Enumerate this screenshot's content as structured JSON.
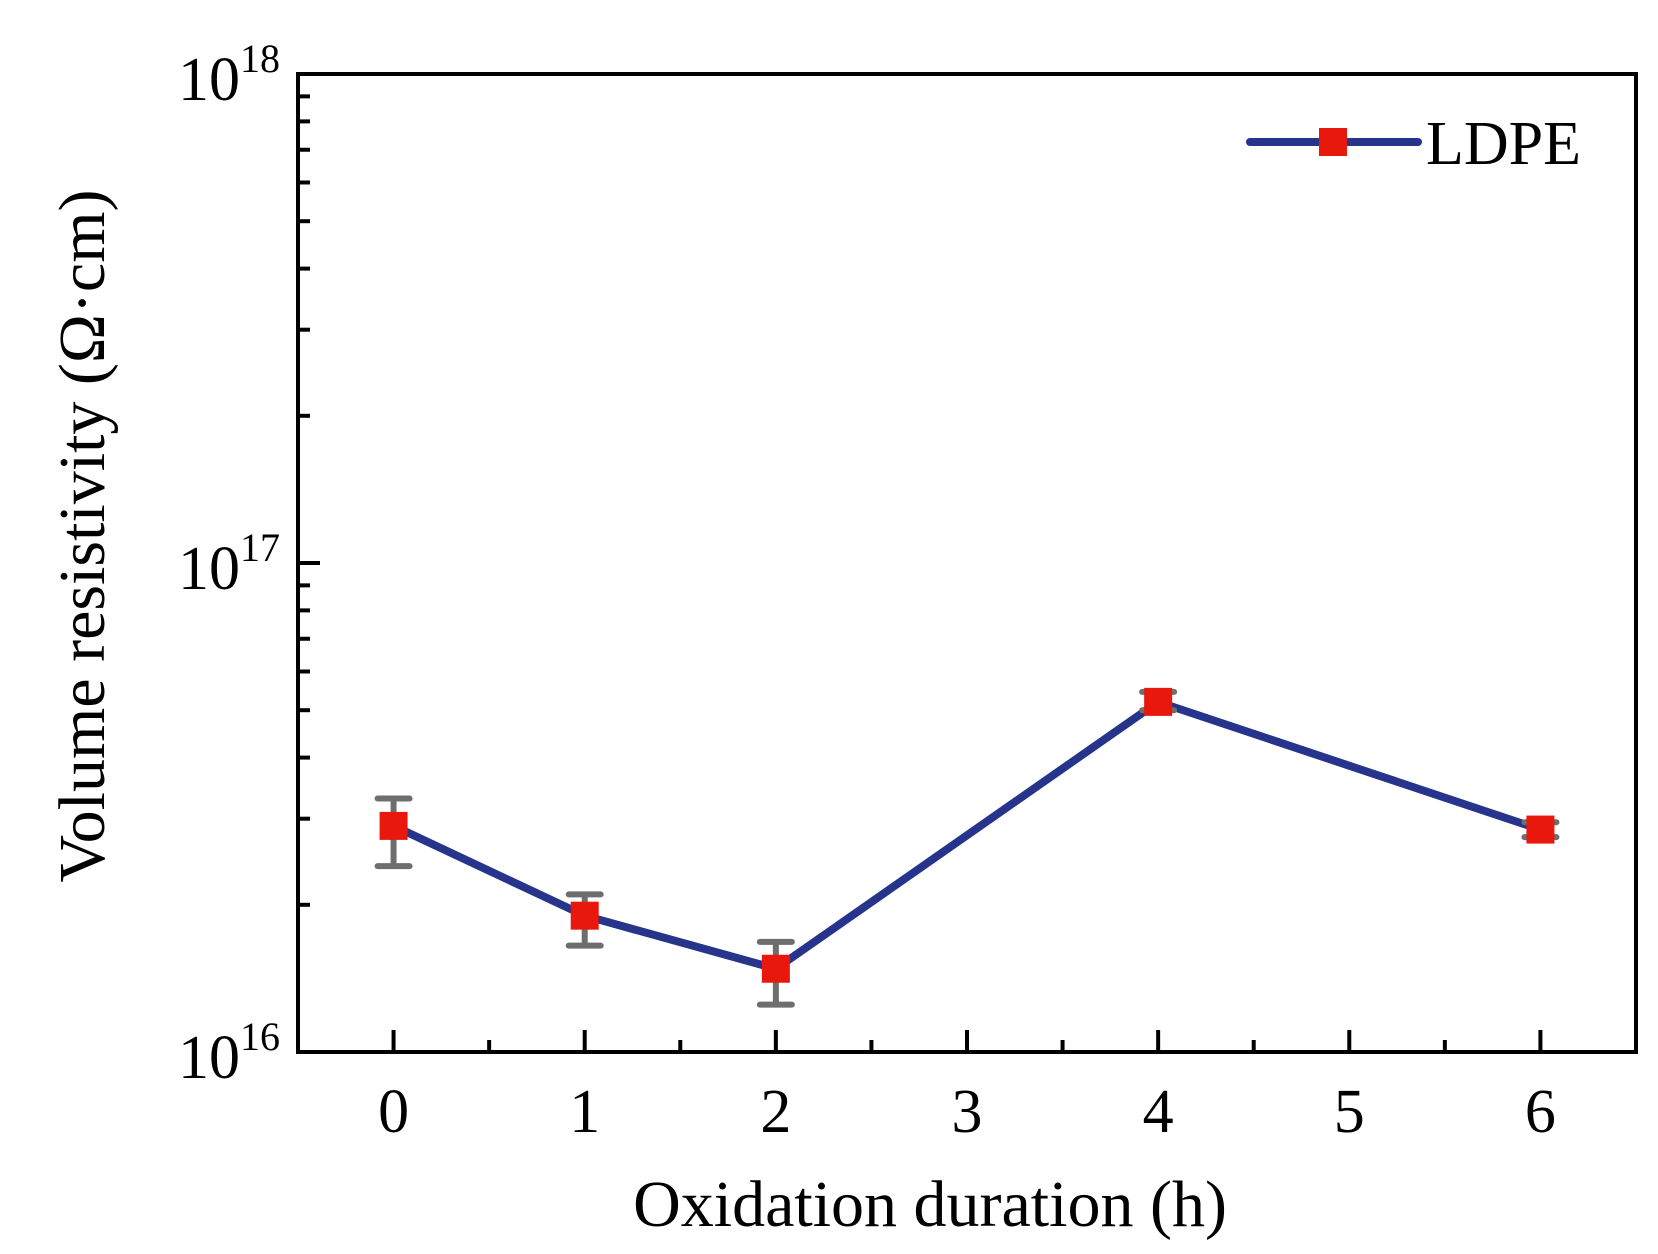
{
  "chart_data": {
    "type": "line",
    "title": "",
    "xlabel": "Oxidation duration (h)",
    "ylabel": "Volume resistivity (Ω·cm)",
    "x_ticks": [
      "0",
      "1",
      "2",
      "3",
      "4",
      "5",
      "6"
    ],
    "xlim": [
      -0.5,
      6.5
    ],
    "y_scale": "log",
    "ylim": [
      1e+16,
      1e+18
    ],
    "y_ticks": [
      {
        "value": 1e+16,
        "base": "10",
        "exp": "16"
      },
      {
        "value": 1e+17,
        "base": "10",
        "exp": "17"
      },
      {
        "value": 1e+18,
        "base": "10",
        "exp": "18"
      }
    ],
    "legend": {
      "position": "top-right",
      "entries": [
        "LDPE"
      ]
    },
    "series": [
      {
        "name": "LDPE",
        "line_color": "#27348b",
        "marker_color": "#e8180c",
        "errorbar_color": "#6e6e6e",
        "points": [
          {
            "x": 0,
            "y": 2.9e+16,
            "err_low": 2.4e+16,
            "err_high": 3.3e+16
          },
          {
            "x": 1,
            "y": 1.9e+16,
            "err_low": 1.65e+16,
            "err_high": 2.1e+16
          },
          {
            "x": 2,
            "y": 1.48e+16,
            "err_low": 1.25e+16,
            "err_high": 1.68e+16
          },
          {
            "x": 4,
            "y": 5.2e+16,
            "err_low": 5e+16,
            "err_high": 5.45e+16
          },
          {
            "x": 6,
            "y": 2.85e+16,
            "err_low": 2.75e+16,
            "err_high": 2.95e+16
          }
        ]
      }
    ]
  }
}
